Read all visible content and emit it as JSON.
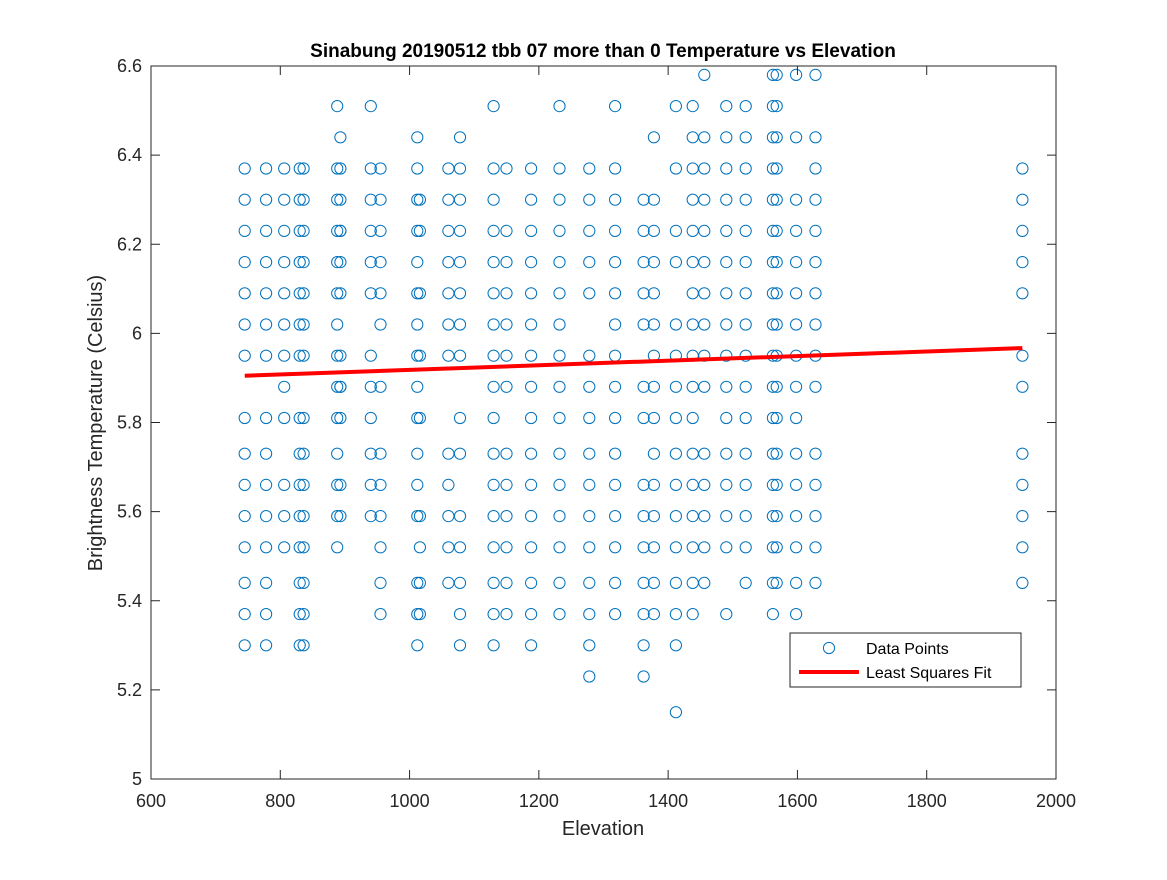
{
  "chart_data": {
    "type": "scatter",
    "title": "Sinabung 20190512 tbb 07 more than 0 Temperature vs Elevation",
    "xlabel": "Elevation",
    "ylabel": "Brightness Temperature (Celsius)",
    "xlim": [
      600,
      2000
    ],
    "ylim": [
      5,
      6.6
    ],
    "xticks": [
      600,
      800,
      1000,
      1200,
      1400,
      1600,
      1800,
      2000
    ],
    "yticks": [
      5,
      5.2,
      5.4,
      5.6,
      5.8,
      6,
      6.2,
      6.4,
      6.6
    ],
    "grid": false,
    "legend": {
      "position": "lower-right",
      "entries": [
        "Data Points",
        "Least Squares Fit"
      ]
    },
    "colors": {
      "points": "#0072BD",
      "fit": "#FF0000"
    },
    "series": [
      {
        "name": "Data Points",
        "mode": "markers",
        "marker": "circle-open",
        "x": [
          745,
          745,
          745,
          745,
          745,
          745,
          745,
          745,
          745,
          745,
          745,
          745,
          745,
          745,
          745,
          778,
          778,
          778,
          778,
          778,
          778,
          778,
          778,
          778,
          778,
          778,
          778,
          778,
          778,
          778,
          806,
          806,
          806,
          806,
          806,
          806,
          806,
          806,
          806,
          806,
          806,
          806,
          830,
          830,
          830,
          830,
          830,
          830,
          830,
          830,
          830,
          830,
          830,
          830,
          830,
          830,
          830,
          836,
          836,
          836,
          836,
          836,
          836,
          836,
          836,
          836,
          836,
          836,
          836,
          836,
          836,
          836,
          888,
          888,
          888,
          888,
          888,
          888,
          888,
          888,
          888,
          888,
          888,
          888,
          888,
          888,
          893,
          893,
          893,
          893,
          893,
          893,
          893,
          893,
          893,
          893,
          893,
          893,
          893,
          940,
          940,
          940,
          940,
          940,
          940,
          940,
          940,
          940,
          940,
          940,
          940,
          955,
          955,
          955,
          955,
          955,
          955,
          955,
          955,
          955,
          955,
          955,
          955,
          955,
          1012,
          1012,
          1012,
          1012,
          1012,
          1012,
          1012,
          1012,
          1012,
          1012,
          1012,
          1012,
          1012,
          1012,
          1012,
          1012,
          1016,
          1016,
          1016,
          1016,
          1016,
          1016,
          1016,
          1016,
          1016,
          1060,
          1060,
          1060,
          1060,
          1060,
          1060,
          1060,
          1060,
          1060,
          1060,
          1060,
          1060,
          1078,
          1078,
          1078,
          1078,
          1078,
          1078,
          1078,
          1078,
          1078,
          1078,
          1078,
          1078,
          1078,
          1078,
          1078,
          1130,
          1130,
          1130,
          1130,
          1130,
          1130,
          1130,
          1130,
          1130,
          1130,
          1130,
          1130,
          1130,
          1130,
          1130,
          1130,
          1130,
          1150,
          1150,
          1150,
          1150,
          1150,
          1150,
          1150,
          1150,
          1150,
          1150,
          1150,
          1150,
          1150,
          1188,
          1188,
          1188,
          1188,
          1188,
          1188,
          1188,
          1188,
          1188,
          1188,
          1188,
          1188,
          1188,
          1188,
          1188,
          1188,
          1232,
          1232,
          1232,
          1232,
          1232,
          1232,
          1232,
          1232,
          1232,
          1232,
          1232,
          1232,
          1232,
          1232,
          1232,
          1232,
          1278,
          1278,
          1278,
          1278,
          1278,
          1278,
          1278,
          1278,
          1278,
          1278,
          1278,
          1278,
          1278,
          1278,
          1278,
          1278,
          1318,
          1318,
          1318,
          1318,
          1318,
          1318,
          1318,
          1318,
          1318,
          1318,
          1318,
          1318,
          1318,
          1318,
          1318,
          1318,
          1362,
          1362,
          1362,
          1362,
          1362,
          1362,
          1362,
          1362,
          1362,
          1362,
          1362,
          1362,
          1362,
          1362,
          1378,
          1378,
          1378,
          1378,
          1378,
          1378,
          1378,
          1378,
          1378,
          1378,
          1378,
          1378,
          1378,
          1378,
          1378,
          1412,
          1412,
          1412,
          1412,
          1412,
          1412,
          1412,
          1412,
          1412,
          1412,
          1412,
          1412,
          1412,
          1412,
          1412,
          1412,
          1438,
          1438,
          1438,
          1438,
          1438,
          1438,
          1438,
          1438,
          1438,
          1438,
          1438,
          1438,
          1438,
          1438,
          1438,
          1438,
          1438,
          1456,
          1456,
          1456,
          1456,
          1456,
          1456,
          1456,
          1456,
          1456,
          1456,
          1456,
          1456,
          1456,
          1456,
          1456,
          1490,
          1490,
          1490,
          1490,
          1490,
          1490,
          1490,
          1490,
          1490,
          1490,
          1490,
          1490,
          1490,
          1490,
          1490,
          1490,
          1520,
          1520,
          1520,
          1520,
          1520,
          1520,
          1520,
          1520,
          1520,
          1520,
          1520,
          1520,
          1520,
          1520,
          1520,
          1520,
          1562,
          1562,
          1562,
          1562,
          1562,
          1562,
          1562,
          1562,
          1562,
          1562,
          1562,
          1562,
          1562,
          1562,
          1562,
          1562,
          1562,
          1562,
          1568,
          1568,
          1568,
          1568,
          1568,
          1568,
          1568,
          1568,
          1568,
          1568,
          1568,
          1568,
          1568,
          1568,
          1568,
          1568,
          1568,
          1598,
          1598,
          1598,
          1598,
          1598,
          1598,
          1598,
          1598,
          1598,
          1598,
          1598,
          1598,
          1598,
          1598,
          1598,
          1598,
          1628,
          1628,
          1628,
          1628,
          1628,
          1628,
          1628,
          1628,
          1628,
          1628,
          1628,
          1628,
          1628,
          1628,
          1628,
          1948,
          1948,
          1948,
          1948,
          1948,
          1948,
          1948,
          1948,
          1948,
          1948,
          1948,
          1948
        ],
        "y": [
          5.3,
          5.37,
          5.44,
          5.52,
          5.59,
          5.66,
          5.73,
          5.81,
          5.95,
          6.02,
          6.09,
          6.16,
          6.23,
          6.3,
          6.37,
          5.3,
          5.37,
          5.44,
          5.52,
          5.59,
          5.66,
          5.73,
          5.81,
          5.95,
          6.02,
          6.09,
          6.16,
          6.23,
          6.3,
          6.37,
          5.52,
          5.59,
          5.66,
          5.81,
          5.88,
          5.95,
          6.02,
          6.09,
          6.16,
          6.23,
          6.3,
          6.37,
          5.3,
          5.37,
          5.44,
          5.52,
          5.59,
          5.66,
          5.73,
          5.81,
          5.95,
          6.02,
          6.09,
          6.16,
          6.23,
          6.3,
          6.37,
          5.3,
          5.37,
          5.44,
          5.52,
          5.59,
          5.66,
          5.73,
          5.81,
          5.95,
          6.02,
          6.09,
          6.16,
          6.23,
          6.3,
          6.37,
          5.52,
          5.59,
          5.66,
          5.73,
          5.81,
          5.88,
          5.95,
          6.02,
          6.09,
          6.16,
          6.23,
          6.3,
          6.37,
          6.51,
          5.59,
          5.66,
          5.81,
          5.88,
          5.95,
          6.09,
          6.16,
          6.23,
          6.3,
          6.37,
          6.44,
          6.23,
          5.88,
          5.59,
          5.66,
          5.73,
          5.81,
          5.88,
          5.95,
          6.09,
          6.16,
          6.23,
          6.3,
          6.37,
          6.51,
          5.37,
          5.44,
          5.52,
          5.59,
          5.66,
          5.73,
          5.88,
          6.02,
          6.09,
          6.16,
          6.23,
          6.3,
          6.37,
          5.3,
          5.37,
          5.44,
          5.59,
          5.73,
          5.81,
          5.88,
          5.95,
          6.02,
          6.09,
          6.16,
          6.23,
          6.3,
          6.37,
          6.44,
          5.66,
          5.44,
          5.59,
          5.81,
          6.09,
          6.23,
          6.3,
          5.37,
          5.52,
          5.95,
          5.44,
          5.52,
          5.59,
          5.66,
          5.73,
          5.95,
          6.02,
          6.09,
          6.16,
          6.23,
          6.3,
          6.37,
          5.3,
          5.37,
          5.44,
          5.59,
          5.73,
          5.81,
          5.95,
          6.02,
          6.09,
          6.16,
          6.23,
          6.3,
          6.37,
          6.44,
          5.52,
          5.3,
          5.37,
          5.44,
          5.52,
          5.59,
          5.66,
          5.73,
          5.81,
          5.88,
          5.95,
          6.02,
          6.09,
          6.16,
          6.23,
          6.3,
          6.37,
          6.51,
          5.37,
          5.44,
          5.52,
          5.59,
          5.66,
          5.73,
          5.88,
          5.95,
          6.02,
          6.09,
          6.16,
          6.23,
          6.37,
          5.3,
          5.37,
          5.44,
          5.52,
          5.59,
          5.66,
          5.73,
          5.81,
          5.88,
          5.95,
          6.02,
          6.09,
          6.16,
          6.23,
          6.3,
          6.37,
          5.37,
          5.44,
          5.52,
          5.59,
          5.66,
          5.73,
          5.81,
          5.88,
          5.95,
          6.02,
          6.09,
          6.16,
          6.23,
          6.3,
          6.37,
          6.51,
          5.23,
          5.3,
          5.37,
          5.44,
          5.52,
          5.59,
          5.66,
          5.73,
          5.81,
          5.88,
          5.95,
          6.09,
          6.16,
          6.23,
          6.3,
          6.37,
          5.37,
          5.44,
          5.52,
          5.59,
          5.66,
          5.73,
          5.81,
          5.88,
          5.95,
          6.02,
          6.09,
          6.16,
          6.23,
          6.3,
          6.37,
          6.51,
          5.23,
          5.3,
          5.37,
          5.44,
          5.52,
          5.59,
          5.66,
          5.81,
          5.88,
          6.02,
          6.09,
          6.16,
          6.23,
          6.3,
          5.37,
          5.44,
          5.52,
          5.59,
          5.66,
          5.73,
          5.81,
          5.88,
          5.95,
          6.02,
          6.09,
          6.16,
          6.23,
          6.3,
          6.44,
          5.15,
          5.3,
          5.37,
          5.44,
          5.52,
          5.59,
          5.66,
          5.73,
          5.81,
          5.88,
          5.95,
          6.02,
          6.16,
          6.23,
          6.37,
          6.51,
          5.37,
          5.44,
          5.52,
          5.59,
          5.66,
          5.73,
          5.81,
          5.88,
          5.95,
          6.02,
          6.09,
          6.16,
          6.23,
          6.3,
          6.37,
          6.44,
          6.51,
          5.44,
          5.52,
          5.59,
          5.66,
          5.73,
          5.88,
          5.95,
          6.02,
          6.09,
          6.16,
          6.23,
          6.3,
          6.37,
          6.44,
          6.58,
          5.37,
          5.52,
          5.59,
          5.66,
          5.73,
          5.81,
          5.88,
          5.95,
          6.02,
          6.09,
          6.16,
          6.23,
          6.3,
          6.37,
          6.44,
          6.51,
          5.44,
          5.52,
          5.59,
          5.66,
          5.73,
          5.81,
          5.88,
          5.95,
          6.02,
          6.09,
          6.16,
          6.23,
          6.3,
          6.37,
          6.44,
          6.51,
          5.37,
          5.44,
          5.52,
          5.59,
          5.66,
          5.73,
          5.81,
          5.88,
          5.95,
          6.02,
          6.09,
          6.16,
          6.23,
          6.3,
          6.37,
          6.44,
          6.51,
          6.58,
          5.44,
          5.52,
          5.59,
          5.66,
          5.73,
          5.81,
          5.88,
          5.95,
          6.02,
          6.09,
          6.16,
          6.23,
          6.3,
          6.37,
          6.44,
          6.51,
          6.58,
          5.37,
          5.44,
          5.52,
          5.59,
          5.66,
          5.73,
          5.81,
          5.88,
          5.95,
          6.02,
          6.09,
          6.16,
          6.23,
          6.3,
          6.44,
          6.58,
          5.44,
          5.52,
          5.59,
          5.66,
          5.73,
          5.88,
          5.95,
          6.02,
          6.09,
          6.16,
          6.23,
          6.3,
          6.37,
          6.44,
          6.58,
          5.44,
          5.52,
          5.59,
          5.66,
          5.73,
          5.88,
          5.95,
          6.09,
          6.16,
          6.23,
          6.3,
          6.37
        ]
      },
      {
        "name": "Least Squares Fit",
        "mode": "line",
        "x": [
          745,
          1948
        ],
        "y": [
          5.905,
          5.967
        ]
      }
    ]
  }
}
